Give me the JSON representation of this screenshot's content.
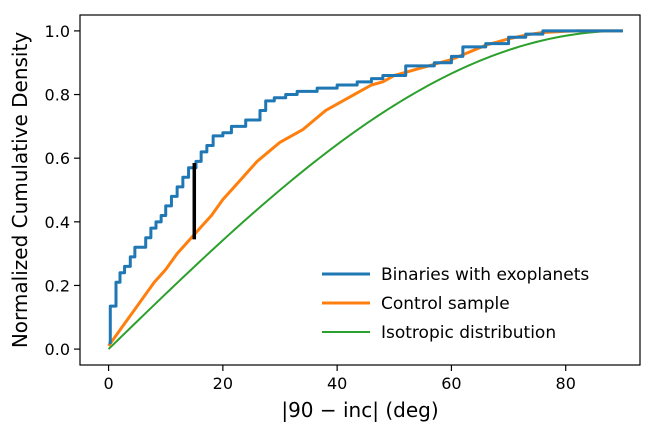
{
  "chart_data": {
    "type": "line",
    "xlabel": "|90 − inc| (deg)",
    "ylabel": "Normalized Cumulative Density",
    "xlim": [
      -5,
      93
    ],
    "ylim": [
      -0.05,
      1.05
    ],
    "xticks": [
      0,
      20,
      40,
      60,
      80
    ],
    "yticks": [
      0.0,
      0.2,
      0.4,
      0.6,
      0.8,
      1.0
    ],
    "xtick_labels": [
      "0",
      "20",
      "40",
      "60",
      "80"
    ],
    "ytick_labels": [
      "0.0",
      "0.2",
      "0.4",
      "0.6",
      "0.8",
      "1.0"
    ],
    "legend_position": "lower-right",
    "grid": false,
    "series": [
      {
        "name": "Binaries with exoplanets",
        "color": "#1f77b4",
        "style": "step",
        "x": [
          0,
          0.3,
          0.7,
          1.3,
          2.0,
          2.8,
          3.8,
          4.6,
          5.5,
          6.5,
          7.4,
          8.3,
          9.2,
          10.0,
          11.0,
          12.0,
          13.0,
          14.0,
          15.3,
          16.2,
          17.2,
          18.3,
          20.0,
          21.5,
          24.0,
          26.5,
          27.5,
          29.0,
          31.0,
          33.0,
          36.5,
          40.0,
          43.5,
          46.0,
          48.0,
          52.0,
          57.0,
          60.0,
          62.0,
          66.0,
          70.0,
          73.0,
          76.0,
          90.0
        ],
        "y": [
          0.02,
          0.135,
          0.135,
          0.21,
          0.24,
          0.26,
          0.29,
          0.32,
          0.32,
          0.35,
          0.38,
          0.4,
          0.42,
          0.45,
          0.48,
          0.51,
          0.54,
          0.57,
          0.59,
          0.62,
          0.64,
          0.67,
          0.68,
          0.7,
          0.72,
          0.75,
          0.78,
          0.79,
          0.8,
          0.81,
          0.82,
          0.83,
          0.84,
          0.85,
          0.86,
          0.89,
          0.9,
          0.92,
          0.95,
          0.96,
          0.98,
          0.99,
          1.0,
          1.0
        ]
      },
      {
        "name": "Control sample",
        "color": "#ff7f0e",
        "style": "line",
        "x": [
          0,
          2,
          4,
          6,
          8,
          10,
          12,
          14,
          15,
          16,
          18,
          20,
          22,
          24,
          26,
          28,
          30,
          32,
          34,
          36,
          38,
          40,
          42,
          44,
          46,
          48,
          50,
          52,
          54,
          56,
          58,
          60,
          62,
          64,
          66,
          68,
          70,
          72,
          74,
          76,
          78,
          80,
          82,
          84,
          86,
          88,
          90
        ],
        "y": [
          0.01,
          0.06,
          0.11,
          0.16,
          0.21,
          0.25,
          0.3,
          0.34,
          0.36,
          0.38,
          0.42,
          0.47,
          0.51,
          0.55,
          0.59,
          0.62,
          0.65,
          0.67,
          0.69,
          0.72,
          0.75,
          0.77,
          0.79,
          0.81,
          0.83,
          0.84,
          0.86,
          0.87,
          0.88,
          0.89,
          0.9,
          0.91,
          0.925,
          0.94,
          0.955,
          0.965,
          0.975,
          0.983,
          0.99,
          0.995,
          0.997,
          0.999,
          1.0,
          1.0,
          1.0,
          1.0,
          1.0
        ]
      },
      {
        "name": "Isotropic distribution",
        "color": "#2ca02c",
        "style": "function",
        "function": "sin(x)"
      }
    ],
    "annotations": [
      {
        "type": "vertical-segment",
        "x": 15,
        "y1": 0.345,
        "y2": 0.585,
        "color": "#000000"
      }
    ]
  }
}
